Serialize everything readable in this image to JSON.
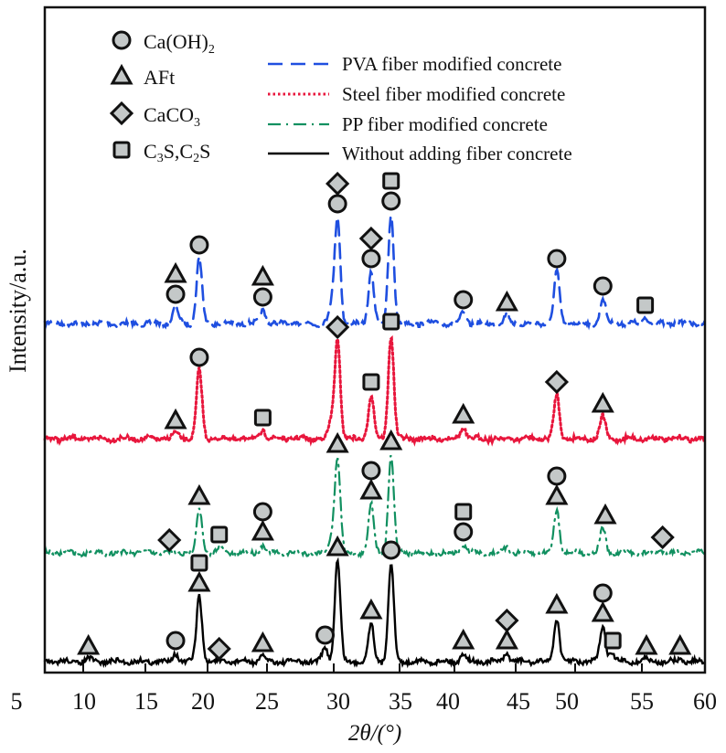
{
  "chart_data": {
    "type": "line",
    "title": "",
    "xlabel": "2θ/(°)",
    "ylabel": "Intensity/a.u.",
    "xlim": [
      7,
      60
    ],
    "x_ticks": [
      "5",
      "10",
      "15",
      "20",
      "25",
      "30",
      "35",
      "40",
      "45",
      "50",
      "55",
      "60"
    ],
    "grid": false,
    "legend_position": "top",
    "phase_legend": [
      {
        "key": "caoh2",
        "label": "Ca(OH)",
        "sub": "2",
        "marker": "circle"
      },
      {
        "key": "aft",
        "label": "AFt",
        "sub": "",
        "marker": "triangle"
      },
      {
        "key": "caco3",
        "label": "CaCO",
        "sub": "3",
        "marker": "diamond"
      },
      {
        "key": "cs",
        "label": "C3S,C2S",
        "sub": "",
        "marker": "square"
      }
    ],
    "series": [
      {
        "name": "PVA fiber modified concrete",
        "color": "#1f4fe0",
        "style": "dashed",
        "peaks": [
          [
            17.5,
            0.6
          ],
          [
            19.4,
            2.4
          ],
          [
            24.5,
            0.5
          ],
          [
            30.0,
            0.6
          ],
          [
            30.5,
            3.9
          ],
          [
            33.2,
            1.9
          ],
          [
            34.8,
            4.0
          ],
          [
            40.6,
            0.4
          ],
          [
            44.1,
            0.3
          ],
          [
            48.1,
            1.9
          ],
          [
            51.8,
            0.9
          ],
          [
            55.2,
            0.2
          ]
        ],
        "markers": [
          {
            "x": 17.5,
            "phases": [
              "aft",
              "caoh2"
            ]
          },
          {
            "x": 19.4,
            "phases": [
              "caoh2"
            ]
          },
          {
            "x": 24.5,
            "phases": [
              "aft",
              "caoh2"
            ]
          },
          {
            "x": 30.5,
            "phases": [
              "caco3",
              "caoh2"
            ]
          },
          {
            "x": 33.2,
            "phases": [
              "caco3",
              "caoh2"
            ]
          },
          {
            "x": 34.8,
            "phases": [
              "cs",
              "caoh2"
            ]
          },
          {
            "x": 40.6,
            "phases": [
              "caoh2"
            ]
          },
          {
            "x": 44.1,
            "phases": [
              "aft"
            ]
          },
          {
            "x": 48.1,
            "phases": [
              "caoh2"
            ]
          },
          {
            "x": 51.8,
            "phases": [
              "caoh2"
            ]
          },
          {
            "x": 55.2,
            "phases": [
              "cs"
            ]
          }
        ]
      },
      {
        "name": "Steel fiber modified concrete",
        "color": "#e8163c",
        "style": "dotted",
        "peaks": [
          [
            17.5,
            0.2
          ],
          [
            19.4,
            2.5
          ],
          [
            24.5,
            0.3
          ],
          [
            30.0,
            0.6
          ],
          [
            30.5,
            3.6
          ],
          [
            33.2,
            1.6
          ],
          [
            34.8,
            3.8
          ],
          [
            40.6,
            0.4
          ],
          [
            48.1,
            1.6
          ],
          [
            51.8,
            0.8
          ]
        ],
        "markers": [
          {
            "x": 17.5,
            "phases": [
              "aft"
            ]
          },
          {
            "x": 19.4,
            "phases": [
              "caoh2"
            ]
          },
          {
            "x": 24.5,
            "phases": [
              "cs"
            ]
          },
          {
            "x": 30.5,
            "phases": [
              "caco3"
            ]
          },
          {
            "x": 33.2,
            "phases": [
              "cs"
            ]
          },
          {
            "x": 34.8,
            "phases": [
              "cs"
            ]
          },
          {
            "x": 40.6,
            "phases": [
              "aft"
            ]
          },
          {
            "x": 48.1,
            "phases": [
              "caco3"
            ]
          },
          {
            "x": 51.8,
            "phases": [
              "aft"
            ]
          }
        ]
      },
      {
        "name": "PP fiber modified concrete",
        "color": "#119060",
        "style": "dashdot",
        "peaks": [
          [
            19.4,
            1.6
          ],
          [
            21.0,
            0.2
          ],
          [
            24.5,
            0.3
          ],
          [
            30.0,
            0.5
          ],
          [
            30.5,
            3.5
          ],
          [
            33.2,
            1.8
          ],
          [
            34.8,
            3.6
          ],
          [
            40.6,
            0.3
          ],
          [
            44.1,
            0.2
          ],
          [
            48.1,
            1.6
          ],
          [
            51.8,
            0.9
          ],
          [
            56.5,
            0.1
          ]
        ],
        "markers": [
          {
            "x": 17.0,
            "phases": [
              "caco3"
            ]
          },
          {
            "x": 19.4,
            "phases": [
              "aft"
            ]
          },
          {
            "x": 21.0,
            "phases": [
              "cs"
            ]
          },
          {
            "x": 24.5,
            "phases": [
              "caoh2",
              "aft"
            ]
          },
          {
            "x": 30.5,
            "phases": [
              "aft"
            ]
          },
          {
            "x": 33.2,
            "phases": [
              "caoh2",
              "aft"
            ]
          },
          {
            "x": 34.8,
            "phases": [
              "aft"
            ]
          },
          {
            "x": 40.6,
            "phases": [
              "cs",
              "caoh2"
            ]
          },
          {
            "x": 48.1,
            "phases": [
              "caoh2",
              "aft"
            ]
          },
          {
            "x": 52.0,
            "phases": [
              "aft"
            ]
          },
          {
            "x": 56.6,
            "phases": [
              "caco3"
            ]
          }
        ]
      },
      {
        "name": "Without adding fiber concrete",
        "color": "#000000",
        "style": "solid",
        "peaks": [
          [
            10.5,
            0.1
          ],
          [
            17.5,
            0.3
          ],
          [
            19.4,
            2.4
          ],
          [
            24.5,
            0.2
          ],
          [
            29.5,
            0.5
          ],
          [
            30.5,
            3.7
          ],
          [
            33.2,
            1.4
          ],
          [
            34.8,
            3.6
          ],
          [
            40.6,
            0.3
          ],
          [
            44.1,
            0.3
          ],
          [
            48.1,
            1.6
          ],
          [
            51.8,
            1.3
          ],
          [
            52.5,
            0.3
          ],
          [
            55.2,
            0.1
          ],
          [
            58.0,
            0.1
          ]
        ],
        "markers": [
          {
            "x": 10.5,
            "phases": [
              "aft"
            ]
          },
          {
            "x": 17.5,
            "phases": [
              "caoh2"
            ]
          },
          {
            "x": 19.4,
            "phases": [
              "cs",
              "aft"
            ]
          },
          {
            "x": 21.0,
            "phases": [
              "caco3"
            ]
          },
          {
            "x": 24.5,
            "phases": [
              "aft"
            ]
          },
          {
            "x": 29.5,
            "phases": [
              "caoh2"
            ]
          },
          {
            "x": 30.5,
            "phases": [
              "aft"
            ]
          },
          {
            "x": 33.2,
            "phases": [
              "aft"
            ]
          },
          {
            "x": 34.8,
            "phases": [
              "caoh2"
            ]
          },
          {
            "x": 40.6,
            "phases": [
              "aft"
            ]
          },
          {
            "x": 44.1,
            "phases": [
              "caco3",
              "aft"
            ]
          },
          {
            "x": 48.1,
            "phases": [
              "aft"
            ]
          },
          {
            "x": 51.8,
            "phases": [
              "caoh2",
              "aft"
            ]
          },
          {
            "x": 52.6,
            "phases": [
              "cs"
            ]
          },
          {
            "x": 55.3,
            "phases": [
              "aft"
            ]
          },
          {
            "x": 58.0,
            "phases": [
              "aft"
            ]
          }
        ]
      }
    ]
  }
}
